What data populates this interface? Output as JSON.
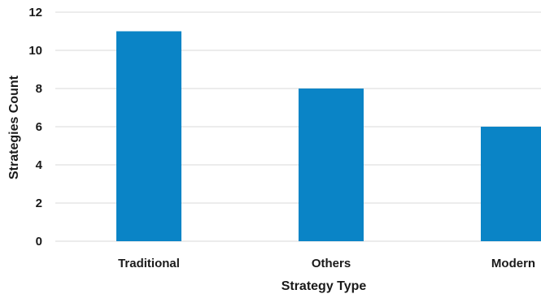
{
  "chart_data": {
    "type": "bar",
    "categories": [
      "Traditional",
      "Others",
      "Modern"
    ],
    "values": [
      11,
      8,
      6
    ],
    "title": "",
    "xlabel": "Strategy Type",
    "ylabel": "Strategies Count",
    "ylim": [
      0,
      12
    ],
    "yticks": [
      0,
      2,
      4,
      6,
      8,
      10,
      12
    ],
    "grid": true,
    "bar_color": "#0a84c6"
  }
}
